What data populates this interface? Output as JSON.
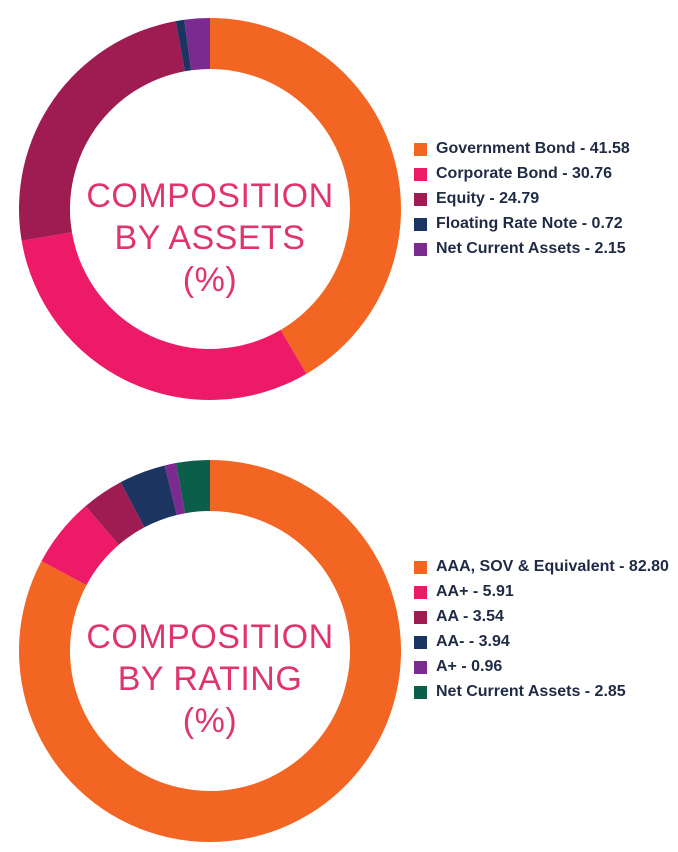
{
  "chart_data": [
    {
      "type": "pie",
      "title": "COMPOSITION BY ASSETS (%)",
      "title_lines": [
        "COMPOSITION",
        "BY ASSETS",
        "(%)"
      ],
      "categories": [
        "Government Bond",
        "Corporate Bond",
        "Equity",
        "Floating Rate Note",
        "Net Current Assets"
      ],
      "values": [
        41.58,
        30.76,
        24.79,
        0.72,
        2.15
      ],
      "legend_labels": [
        "Government Bond - 41.58",
        "Corporate Bond - 30.76",
        "Equity - 24.79",
        "Floating Rate Note - 0.72",
        "Net Current Assets - 2.15"
      ],
      "colors": [
        "#f26522",
        "#ec1a67",
        "#9e1c52",
        "#1b3560",
        "#7b2a8f"
      ],
      "legend_position": "right",
      "style": "donut"
    },
    {
      "type": "pie",
      "title": "COMPOSITION BY RATING (%)",
      "title_lines": [
        "COMPOSITION",
        "BY RATING",
        "(%)"
      ],
      "categories": [
        "AAA, SOV & Equivalent",
        "AA+",
        "AA",
        "AA-",
        "A+",
        "Net Current Assets"
      ],
      "values": [
        82.8,
        5.91,
        3.54,
        3.94,
        0.96,
        2.85
      ],
      "legend_labels": [
        "AAA, SOV & Equivalent - 82.80",
        "AA+ - 5.91",
        "AA - 3.54",
        "AA- - 3.94",
        "A+ - 0.96",
        "Net Current Assets - 2.85"
      ],
      "colors": [
        "#f26522",
        "#ec1a67",
        "#9e1c52",
        "#1b3560",
        "#7b2a8f",
        "#0b5e4a"
      ],
      "legend_position": "right",
      "style": "donut"
    }
  ]
}
